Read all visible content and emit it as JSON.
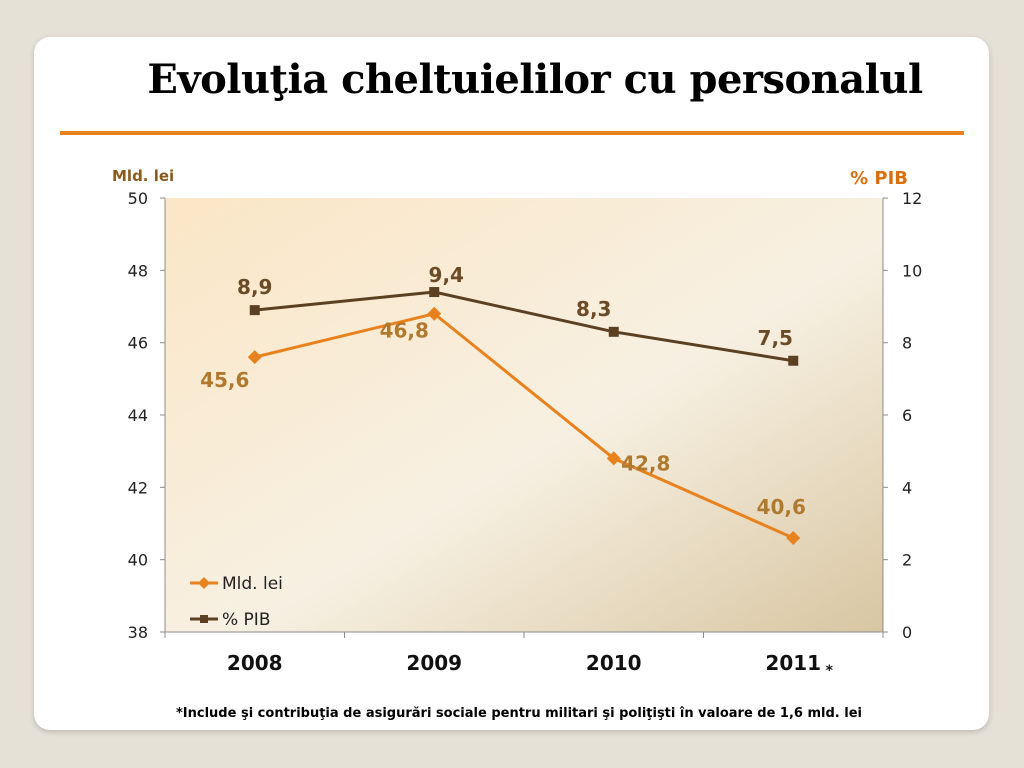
{
  "title": "Evoluţia cheltuielilor cu personalul",
  "footnote": "*Include şi contribuţia de asigurări sociale pentru militari şi poliţişti în valoare de 1,6 mld. lei",
  "colors": {
    "accent": "#e8821e",
    "series_lei": "#e8821e",
    "series_pib": "#5c4022",
    "axis_title_left": "#8a5a1e",
    "axis_title_right": "#d9700f",
    "data_label": "#b07a2e"
  },
  "chart_data": {
    "type": "line",
    "categories": [
      "2008",
      "2009",
      "2010",
      "2011"
    ],
    "category_marker": "*",
    "left_axis": {
      "label": "Mld. lei",
      "min": 38,
      "max": 50,
      "ticks": [
        "38",
        "40",
        "42",
        "44",
        "46",
        "48",
        "50"
      ]
    },
    "right_axis": {
      "label": "% PIB",
      "min": 0,
      "max": 12,
      "ticks": [
        "0",
        "2",
        "4",
        "6",
        "8",
        "10",
        "12"
      ]
    },
    "series": [
      {
        "name": "Mld. lei",
        "axis": "left",
        "marker": "diamond",
        "values": [
          45.6,
          46.8,
          42.8,
          40.6
        ],
        "labels": [
          "45,6",
          "46,8",
          "42,8",
          "40,6"
        ]
      },
      {
        "name": "% PIB",
        "axis": "right",
        "marker": "square",
        "values": [
          8.9,
          9.4,
          8.3,
          7.5
        ],
        "labels": [
          "8,9",
          "9,4",
          "8,3",
          "7,5"
        ]
      }
    ],
    "legend_position": "bottom-left-inside",
    "grid": false
  }
}
